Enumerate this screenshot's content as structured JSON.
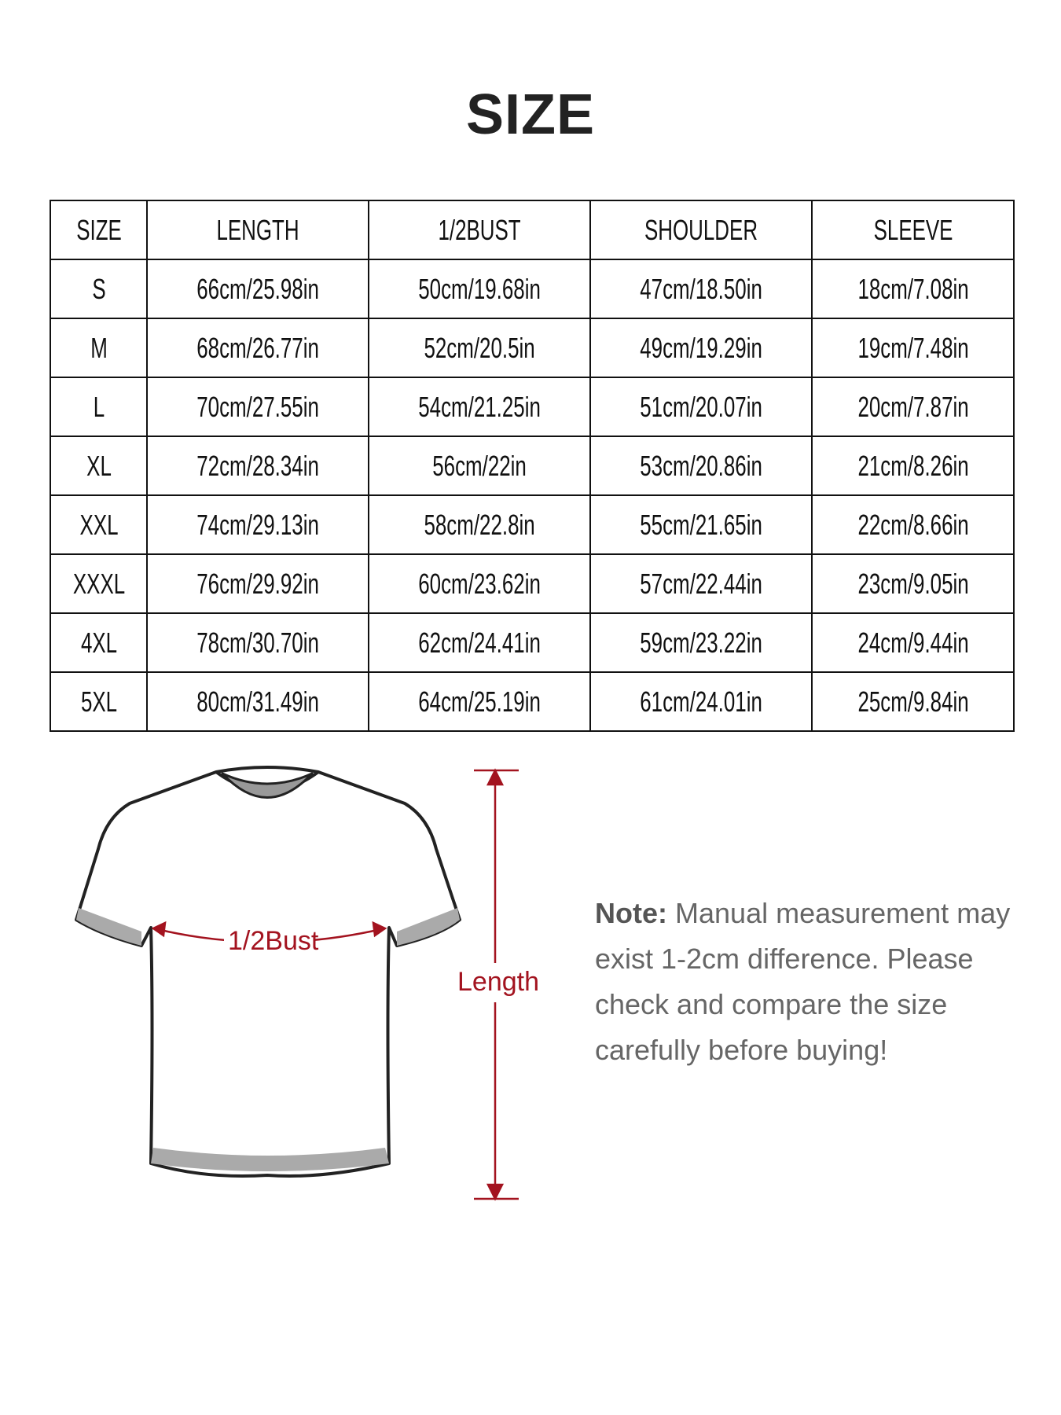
{
  "title": "SIZE",
  "table": {
    "headers": [
      "SIZE",
      "LENGTH",
      "1/2BUST",
      "SHOULDER",
      "SLEEVE"
    ],
    "rows": [
      [
        "S",
        "66cm/25.98in",
        "50cm/19.68in",
        "47cm/18.50in",
        "18cm/7.08in"
      ],
      [
        "M",
        "68cm/26.77in",
        "52cm/20.5in",
        "49cm/19.29in",
        "19cm/7.48in"
      ],
      [
        "L",
        "70cm/27.55in",
        "54cm/21.25in",
        "51cm/20.07in",
        "20cm/7.87in"
      ],
      [
        "XL",
        "72cm/28.34in",
        "56cm/22in",
        "53cm/20.86in",
        "21cm/8.26in"
      ],
      [
        "XXL",
        "74cm/29.13in",
        "58cm/22.8in",
        "55cm/21.65in",
        "22cm/8.66in"
      ],
      [
        "XXXL",
        "76cm/29.92in",
        "60cm/23.62in",
        "57cm/22.44in",
        "23cm/9.05in"
      ],
      [
        "4XL",
        "78cm/30.70in",
        "62cm/24.41in",
        "59cm/23.22in",
        "24cm/9.44in"
      ],
      [
        "5XL",
        "80cm/31.49in",
        "64cm/25.19in",
        "61cm/24.01in",
        "25cm/9.84in"
      ]
    ]
  },
  "diagram": {
    "bust_label": "1/2Bust",
    "length_label": "Length",
    "accent_color": "#a3131f"
  },
  "note": {
    "label": "Note:",
    "text": "Manual measurement may exist 1-2cm difference. Please check and compare the size carefully before buying!"
  }
}
